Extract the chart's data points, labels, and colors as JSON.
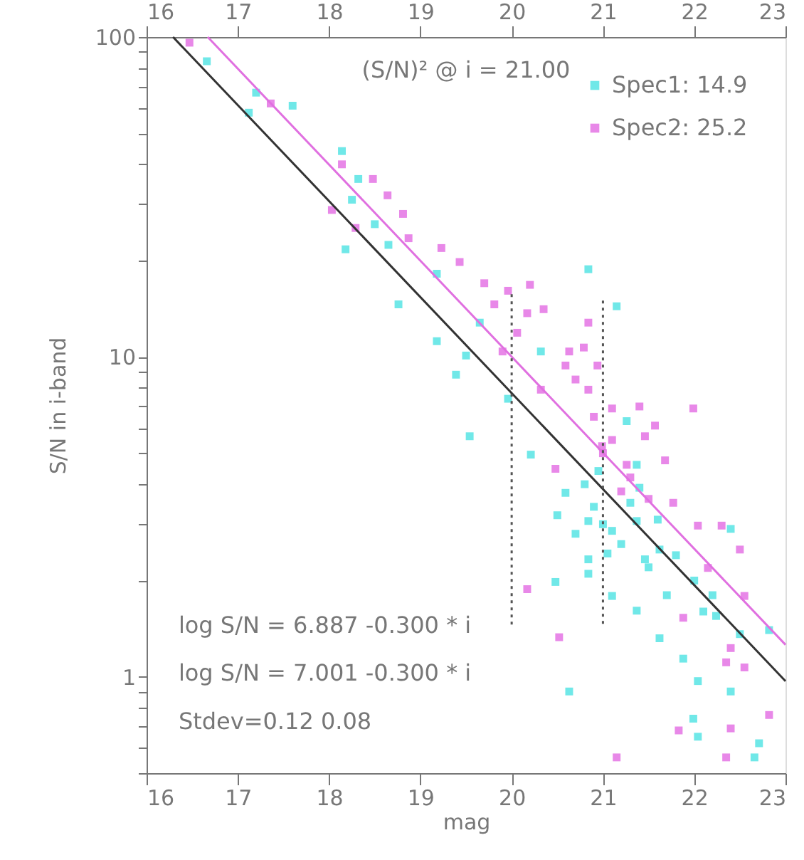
{
  "chart_data": {
    "type": "scatter",
    "xlabel": "mag",
    "ylabel": "S/N in i-band",
    "xlim": [
      16,
      23
    ],
    "xticks": [
      16,
      17,
      18,
      19,
      20,
      21,
      22,
      23
    ],
    "x2lim": [
      16,
      23
    ],
    "x2ticks": [
      16,
      17,
      18,
      19,
      20,
      21,
      22,
      23
    ],
    "ylim": [
      0.5,
      100
    ],
    "log": "y",
    "yticks": [
      {
        "value": 0.5,
        "label": null
      },
      {
        "value": 0.6,
        "label": null
      },
      {
        "value": 0.7,
        "label": null
      },
      {
        "value": 0.8,
        "label": null
      },
      {
        "value": 0.9,
        "label": null
      },
      1,
      {
        "value": 2,
        "label": null
      },
      {
        "value": 3,
        "label": null
      },
      {
        "value": 4,
        "label": null
      },
      {
        "value": 5,
        "label": null
      },
      {
        "value": 6,
        "label": null
      },
      {
        "value": 7,
        "label": null
      },
      {
        "value": 8,
        "label": null
      },
      {
        "value": 9,
        "label": null
      },
      10,
      {
        "value": 20,
        "label": null
      },
      {
        "value": 30,
        "label": null
      },
      {
        "value": 40,
        "label": null
      },
      {
        "value": 50,
        "label": null
      },
      {
        "value": 60,
        "label": null
      },
      {
        "value": 70,
        "label": null
      },
      {
        "value": 80,
        "label": null
      },
      {
        "value": 90,
        "label": null
      },
      100
    ],
    "grid": false,
    "legend": "top right",
    "marker": "square",
    "series": [
      {
        "name": "Spec1: 14.9",
        "color": "#40e0e0",
        "x": [
          16.66,
          17.2,
          17.12,
          17.6,
          18.14,
          18.32,
          18.25,
          18.18,
          18.65,
          18.5,
          20.84,
          19.18,
          18.76,
          19.18,
          19.39,
          19.54,
          19.96,
          21.15,
          20.21,
          20.59,
          20.84,
          21.1,
          21.37,
          21.62,
          22.4,
          20.84,
          19.65,
          19.5,
          21.26,
          20.32,
          21.37,
          20.48,
          20.63,
          21.37,
          21.62,
          21.88,
          22.04,
          22.4,
          21.99,
          22.04,
          22.71,
          22.66,
          22.24,
          22.5,
          22.82,
          21.1,
          20.84,
          21.46,
          21.05,
          21.0,
          21.3,
          20.8,
          21.5,
          22.0,
          22.2,
          21.7,
          20.9,
          21.2,
          20.7,
          21.4,
          21.8,
          20.5,
          21.6,
          22.1,
          20.95
        ],
        "values": [
          84,
          67,
          58,
          61,
          44,
          36,
          31,
          21.7,
          22.4,
          26,
          18.8,
          18.2,
          14.6,
          11.2,
          8.8,
          5.65,
          7.4,
          14.4,
          4.95,
          3.76,
          3.07,
          2.86,
          3.07,
          2.5,
          2.9,
          2.33,
          12.8,
          10.1,
          6.3,
          10.4,
          4.6,
          1.98,
          0.9,
          1.61,
          1.32,
          1.14,
          0.97,
          0.9,
          0.74,
          0.65,
          0.62,
          0.56,
          1.55,
          1.36,
          1.4,
          1.79,
          2.1,
          2.33,
          2.43,
          3.0,
          3.5,
          4.0,
          2.2,
          2.0,
          1.8,
          1.8,
          3.4,
          2.6,
          2.8,
          3.9,
          2.4,
          3.2,
          3.1,
          1.6,
          4.4
        ]
      },
      {
        "name": "Spec2: 25.2",
        "color": "#e060e0",
        "x": [
          16.47,
          17.36,
          18.14,
          18.48,
          18.64,
          18.81,
          18.87,
          19.23,
          19.43,
          18.03,
          18.29,
          19.7,
          20.2,
          19.96,
          20.35,
          20.79,
          20.94,
          20.84,
          21.99,
          21.57,
          21.68,
          21.46,
          20.32,
          20.06,
          20.59,
          21.1,
          20.99,
          21.26,
          21.77,
          22.04,
          22.3,
          22.5,
          20.48,
          20.63,
          20.84,
          20.17,
          19.81,
          19.9,
          20.17,
          20.52,
          21.88,
          22.4,
          22.35,
          22.55,
          22.82,
          21.83,
          22.4,
          21.15,
          22.35,
          22.55,
          22.15,
          21.0,
          21.1,
          20.9,
          21.3,
          21.2,
          21.5,
          20.7,
          21.4
        ],
        "values": [
          96,
          62,
          40,
          36,
          32,
          28,
          23.5,
          21.9,
          19.8,
          28.8,
          25.3,
          17,
          16.8,
          16.1,
          14.1,
          10.7,
          9.4,
          7.9,
          6.9,
          6.1,
          4.75,
          5.65,
          7.9,
          11.9,
          9.4,
          6.9,
          5.26,
          4.6,
          3.5,
          2.97,
          2.97,
          2.5,
          4.47,
          10.4,
          12.8,
          13.7,
          14.6,
          10.4,
          1.88,
          1.33,
          1.53,
          1.23,
          1.11,
          1.07,
          0.76,
          0.68,
          0.69,
          0.56,
          0.56,
          1.79,
          2.19,
          5.0,
          5.5,
          6.5,
          4.2,
          3.8,
          3.6,
          8.5,
          7.0
        ]
      },
      {
        "type": "line",
        "color": "#333333",
        "line_style": "solid",
        "marker": "none",
        "x": [
          16.29,
          23
        ],
        "values": [
          100,
          0.97
        ]
      },
      {
        "type": "line",
        "color": "#e070e0",
        "line_style": "solid",
        "marker": "none",
        "x": [
          16.67,
          23
        ],
        "values": [
          100,
          1.26
        ]
      },
      {
        "type": "line",
        "color": "#555555",
        "line_style": "dotted",
        "marker": "none",
        "x": [
          20,
          20
        ],
        "values": [
          15.7,
          1.43
        ]
      },
      {
        "type": "line",
        "color": "#555555",
        "line_style": "dotted",
        "marker": "none",
        "x": [
          21,
          21
        ],
        "values": [
          15.0,
          1.45
        ]
      }
    ],
    "annotations": [
      "(S/N)² @ i = 21.00",
      "log S/N = 6.887 -0.300 * i",
      "log S/N = 7.001 -0.300 * i",
      "Stdev=0.12 0.08"
    ]
  }
}
